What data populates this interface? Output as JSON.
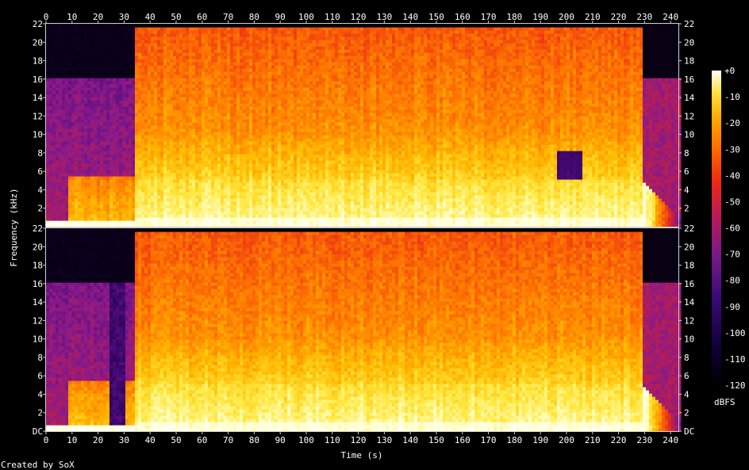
{
  "chart_data": {
    "type": "heatmap",
    "title": "",
    "xlabel": "Time (s)",
    "ylabel": "Frequency (kHz)",
    "x_ticks": [
      0,
      10,
      20,
      30,
      40,
      50,
      60,
      70,
      80,
      90,
      100,
      110,
      120,
      130,
      140,
      150,
      160,
      170,
      180,
      190,
      200,
      210,
      220,
      230,
      240
    ],
    "xlim": [
      0,
      243
    ],
    "y_ticks": [
      "DC",
      "2",
      "4",
      "6",
      "8",
      "10",
      "12",
      "14",
      "16",
      "18",
      "20",
      "22"
    ],
    "ylim_khz": [
      0,
      22
    ],
    "channels": 2,
    "colorbar": {
      "label": "dBFS",
      "ticks": [
        "+0",
        "-10",
        "-20",
        "-30",
        "-40",
        "-50",
        "-60",
        "-70",
        "-80",
        "-90",
        "-100",
        "-110",
        "-120"
      ],
      "range": [
        -120,
        0
      ]
    },
    "approx_regions": {
      "intro_lowpass_khz": 16,
      "intro_end_s": 33,
      "music_end_s": 229,
      "outro_lowpass_khz": 16
    },
    "palette": [
      "#000000",
      "#1a0040",
      "#4a0a7a",
      "#8a1a8a",
      "#c8203a",
      "#f03a10",
      "#ff7a00",
      "#ffb800",
      "#ffe840",
      "#ffffc8",
      "#ffffff"
    ]
  },
  "credit": "Created by SoX"
}
